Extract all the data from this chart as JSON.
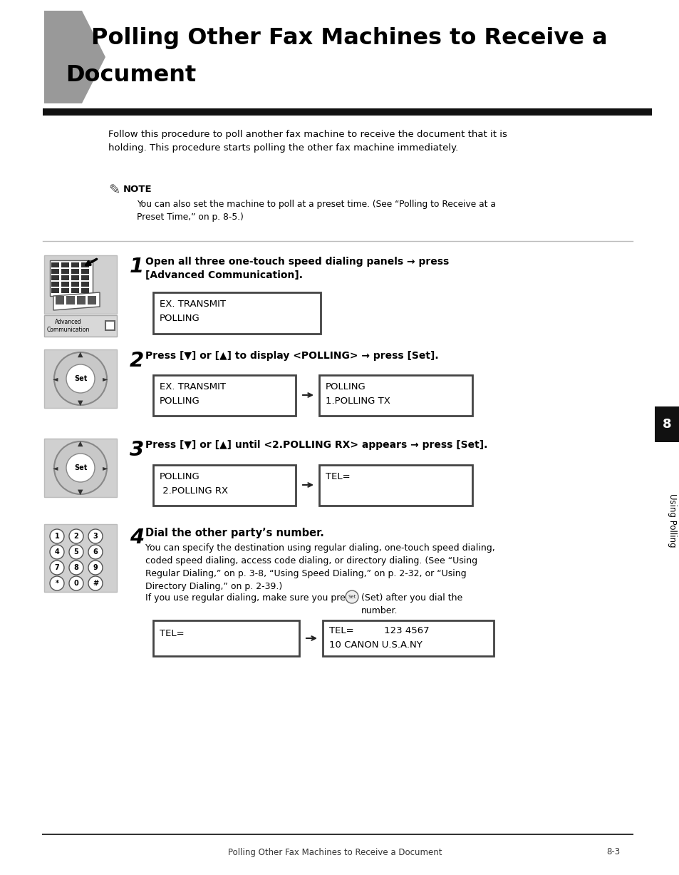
{
  "title_line1": "Polling Other Fax Machines to Receive a",
  "title_line2": "Document",
  "bg_color": "#ffffff",
  "intro_text": "Follow this procedure to poll another fax machine to receive the document that it is\nholding. This procedure starts polling the other fax machine immediately.",
  "note_label": "NOTE",
  "note_text": "You can also set the machine to poll at a preset time. (See “Polling to Receive at a\nPreset Time,” on p. 8-5.)",
  "step1_num": "1",
  "step1_text": "Open all three one-touch speed dialing panels → press\n[Advanced Communication].",
  "step1_display": "EX. TRANSMIT\nPOLLING",
  "step2_num": "2",
  "step2_text": "Press [▼] or [▲] to display <POLLING> → press [Set].",
  "step2_display_left": "EX. TRANSMIT\nPOLLING",
  "step2_display_right": "POLLING\n1.POLLING TX",
  "step3_num": "3",
  "step3_text": "Press [▼] or [▲] until <2.POLLING RX> appears → press [Set].",
  "step3_display_left": "POLLING\n 2.POLLING RX",
  "step3_display_right": "TEL=",
  "step4_num": "4",
  "step4_text": "Dial the other party’s number.",
  "step4_body1": "You can specify the destination using regular dialing, one-touch speed dialing,\ncoded speed dialing, access code dialing, or directory dialing. (See “Using\nRegular Dialing,” on p. 3-8, “Using Speed Dialing,” on p. 2-32, or “Using\nDirectory Dialing,” on p. 2-39.)",
  "step4_body2": "If you use regular dialing, make sure you press",
  "step4_body2b": "(Set) after you dial the\nnumber.",
  "step4_display_left": "TEL=",
  "step4_display_right": "TEL=          123 4567\n10 CANON U.S.A.NY",
  "footer_text": "Polling Other Fax Machines to Receive a Document",
  "footer_page": "8-3",
  "sidebar_text": "Using Polling",
  "sidebar_num": "8"
}
